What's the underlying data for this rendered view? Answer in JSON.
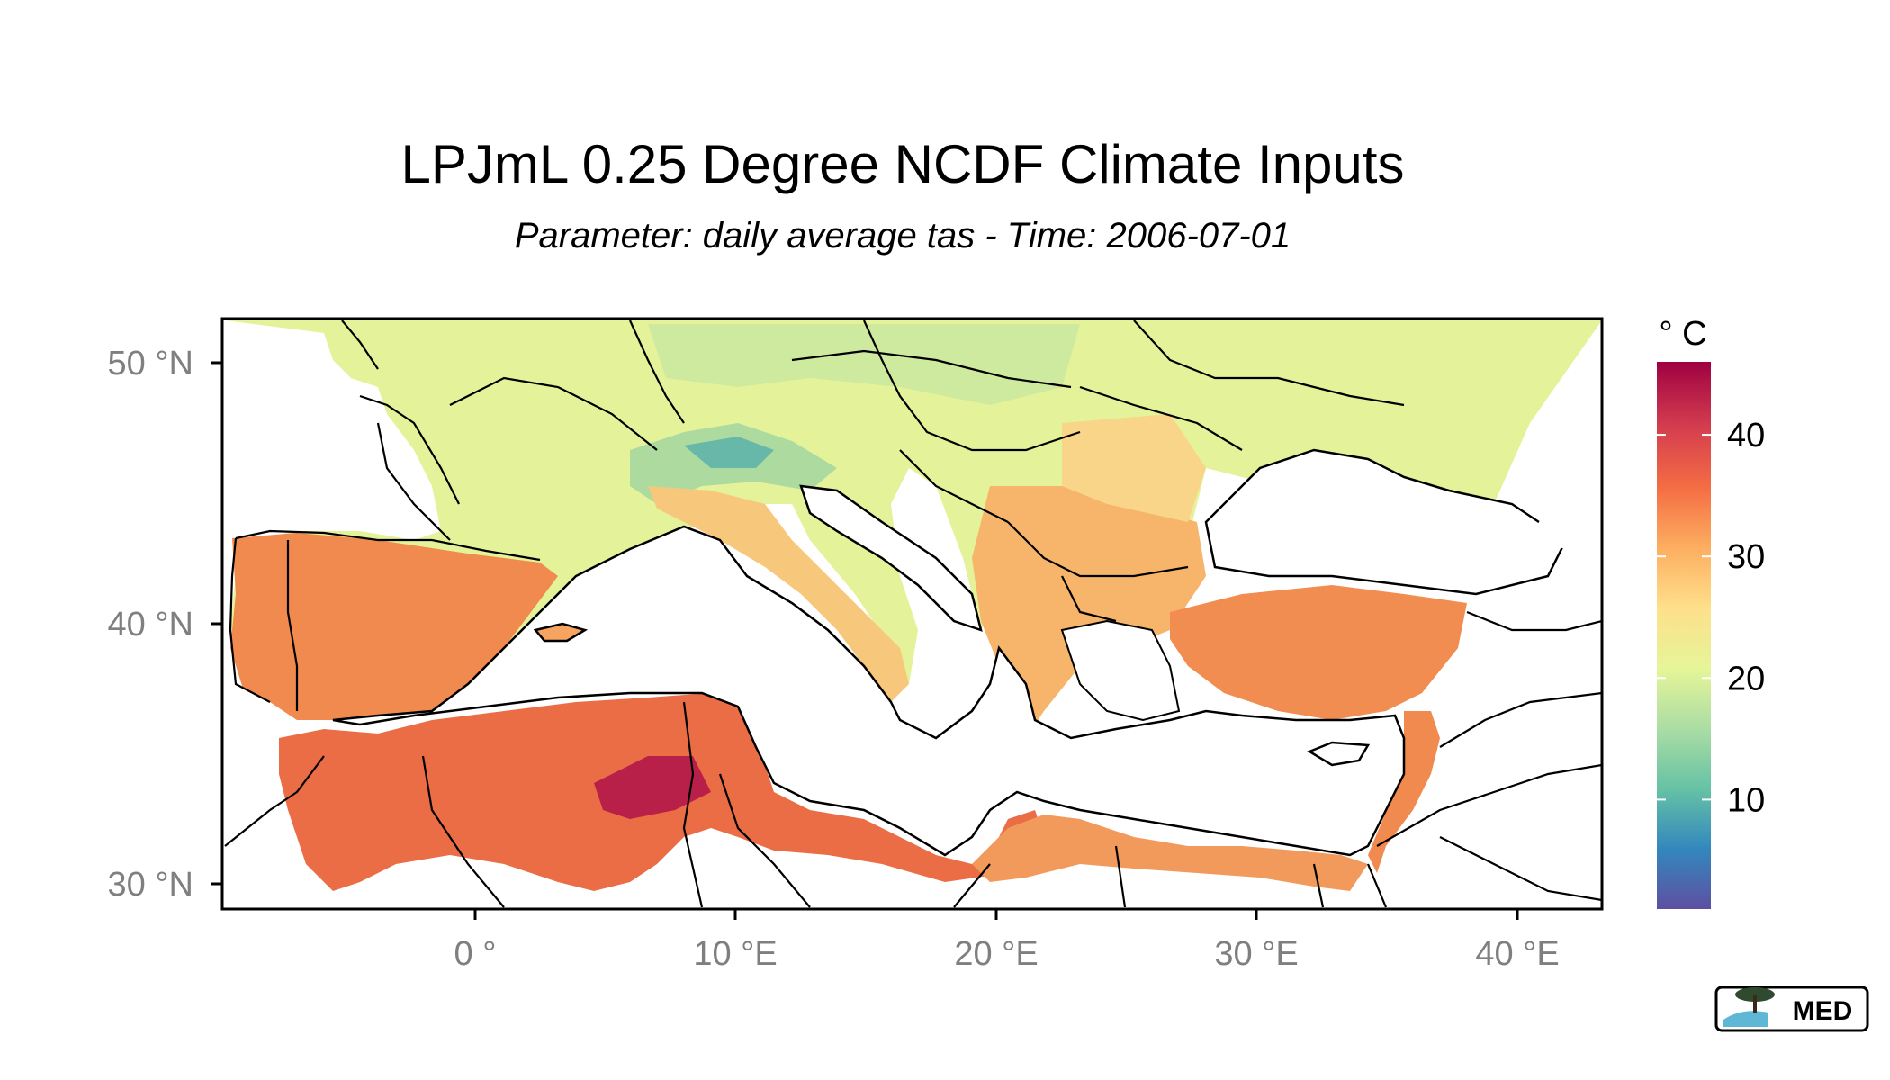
{
  "title": "LPJmL 0.25 Degree NCDF Climate Inputs",
  "subtitle": "Parameter: daily average tas - Time: 2006-07-01",
  "map": {
    "region": "Mediterranean basin",
    "lon_range": [
      -10,
      43
    ],
    "lat_range": [
      29,
      51.7
    ],
    "x_ticks": [
      {
        "value": 0,
        "label": "0 °"
      },
      {
        "value": 10,
        "label": "10 °E"
      },
      {
        "value": 20,
        "label": "20 °E"
      },
      {
        "value": 30,
        "label": "30 °E"
      },
      {
        "value": 40,
        "label": "40 °E"
      }
    ],
    "y_ticks": [
      {
        "value": 50,
        "label": "50 °N"
      },
      {
        "value": 40,
        "label": "40 °N"
      },
      {
        "value": 30,
        "label": "30 °N"
      }
    ],
    "tick_label_color": "#7f7f7f"
  },
  "legend": {
    "title": "° C",
    "range": [
      1,
      46
    ],
    "ticks": [
      {
        "value": 10,
        "label": "10"
      },
      {
        "value": 20,
        "label": "20"
      },
      {
        "value": 30,
        "label": "30"
      },
      {
        "value": 40,
        "label": "40"
      }
    ],
    "palette": [
      "#5e4fa2",
      "#3288bd",
      "#66c2a5",
      "#abdda4",
      "#e6f598",
      "#fee08b",
      "#fdae61",
      "#f46d43",
      "#d53e4f",
      "#9e0142"
    ]
  },
  "logo": {
    "text": "MED"
  }
}
